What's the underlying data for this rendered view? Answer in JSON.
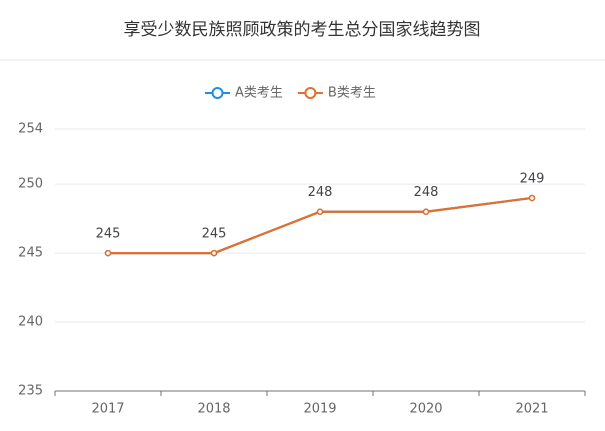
{
  "chart_data": {
    "type": "line",
    "title": "享受少数民族照顾政策的考生总分国家线趋势图",
    "categories": [
      "2017",
      "2018",
      "2019",
      "2020",
      "2021"
    ],
    "series": [
      {
        "name": "A类考生",
        "color": "#1f8fe5",
        "values": [
          245,
          245,
          248,
          248,
          249
        ]
      },
      {
        "name": "B类考生",
        "color": "#e3702a",
        "values": [
          245,
          245,
          248,
          248,
          249
        ]
      }
    ],
    "ylim": [
      235,
      254
    ],
    "yticks": [
      235,
      240,
      245,
      250,
      254
    ],
    "grid": true
  }
}
